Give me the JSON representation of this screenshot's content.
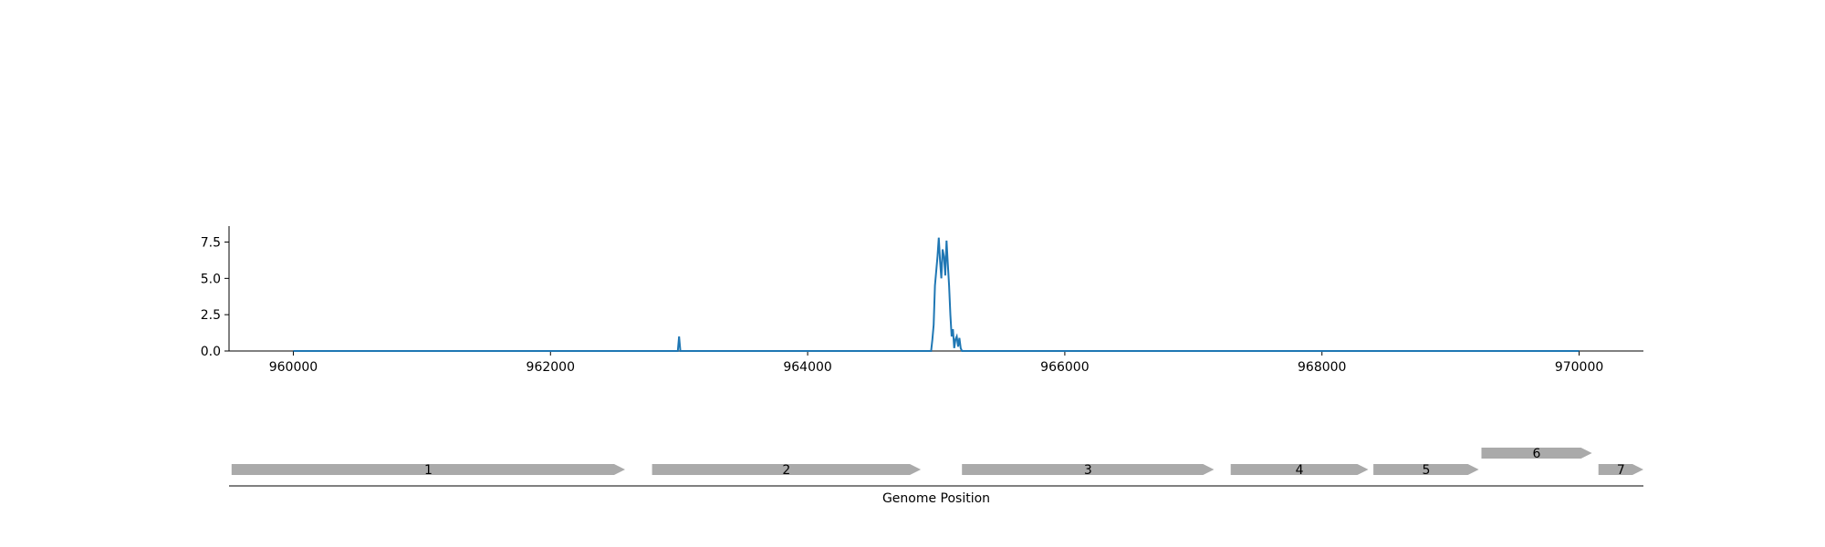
{
  "chart_data": {
    "type": "line",
    "title": "",
    "ylabel": "",
    "xlabel": "Genome Position",
    "xlim": [
      959500,
      970500
    ],
    "ylim": [
      0,
      8.6
    ],
    "x_ticks": [
      960000,
      962000,
      964000,
      966000,
      968000,
      970000
    ],
    "x_tick_labels": [
      "960000",
      "962000",
      "964000",
      "966000",
      "968000",
      "970000"
    ],
    "y_ticks": [
      0.0,
      2.5,
      5.0,
      7.5
    ],
    "y_tick_labels": [
      "0.0",
      "2.5",
      "5.0",
      "7.5"
    ],
    "line_color": "#1f77b4",
    "series": [
      {
        "x": [
          960000,
          962990,
          963000,
          963010,
          964960,
          964970,
          964980,
          964990,
          965000,
          965010,
          965020,
          965030,
          965040,
          965050,
          965060,
          965070,
          965080,
          965090,
          965100,
          965110,
          965120,
          965130,
          965140,
          965150,
          965160,
          965170,
          965180,
          965190,
          965200,
          970000
        ],
        "y": [
          0,
          0,
          1.0,
          0,
          0,
          0.8,
          1.8,
          4.5,
          5.5,
          6.5,
          7.8,
          6.2,
          5.0,
          7.0,
          6.5,
          5.2,
          7.6,
          6.0,
          4.5,
          2.5,
          1.0,
          1.5,
          0.2,
          0.8,
          1.0,
          0.3,
          0.9,
          0.2,
          0,
          0
        ]
      }
    ],
    "genes": {
      "color": "#aaaaaa",
      "items": [
        {
          "label": "1",
          "start": 959520,
          "end": 962580,
          "strand": "+",
          "track": 0
        },
        {
          "label": "2",
          "start": 962790,
          "end": 964880,
          "strand": "+",
          "track": 0
        },
        {
          "label": "3",
          "start": 965200,
          "end": 967160,
          "strand": "+",
          "track": 0
        },
        {
          "label": "4",
          "start": 967290,
          "end": 968360,
          "strand": "+",
          "track": 0
        },
        {
          "label": "5",
          "start": 968400,
          "end": 969220,
          "strand": "+",
          "track": 0
        },
        {
          "label": "6",
          "start": 969240,
          "end": 970100,
          "strand": "+",
          "track": 1
        },
        {
          "label": "7",
          "start": 970150,
          "end": 970500,
          "strand": "+",
          "track": 0
        }
      ]
    }
  }
}
